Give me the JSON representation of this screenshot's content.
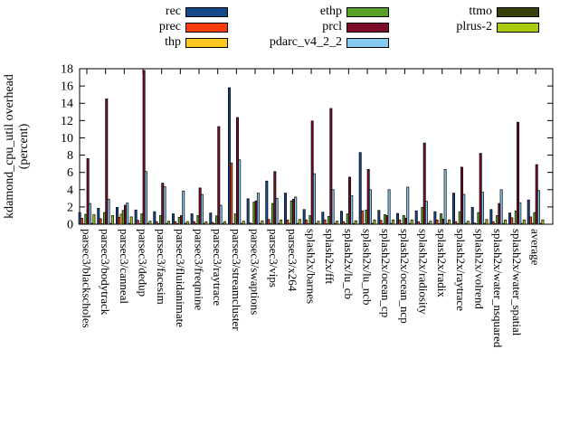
{
  "chart_data": {
    "type": "bar",
    "title": "",
    "ylabel_line1": "kdamond_cpu_util overhead",
    "ylabel_line2": "(percent)",
    "ylim": [
      0,
      18
    ],
    "ytick_step": 2,
    "grid": false,
    "legend_position": "top",
    "legend_columns": [
      [
        "rec",
        "prec",
        "thp"
      ],
      [
        "ethp",
        "prcl",
        "pdarc_v4_2_2"
      ],
      [
        "ttmo",
        "plrus-2"
      ]
    ],
    "categories": [
      "parsec3/blackscholes",
      "parsec3/bodytrack",
      "parsec3/canneal",
      "parsec3/dedup",
      "parsec3/facesim",
      "parsec3/fluidanimate",
      "parsec3/freqmine",
      "parsec3/raytrace",
      "parsec3/streamcluster",
      "parsec3/swaptions",
      "parsec3/vips",
      "parsec3/x264",
      "splash2x/barnes",
      "splash2x/fft",
      "splash2x/lu_cb",
      "splash2x/lu_ncb",
      "splash2x/ocean_cp",
      "splash2x/ocean_ncp",
      "splash2x/radiosity",
      "splash2x/radix",
      "splash2x/raytrace",
      "splash2x/volrend",
      "splash2x/water_nsquared",
      "splash2x/water_spatial",
      "average"
    ],
    "series": [
      {
        "name": "rec",
        "color": "#16498c",
        "values": [
          1.35,
          1.85,
          1.95,
          1.65,
          1.45,
          1.2,
          1.2,
          1.3,
          15.8,
          2.95,
          5.0,
          3.6,
          1.7,
          1.4,
          1.5,
          8.3,
          1.6,
          1.25,
          1.55,
          1.45,
          3.6,
          1.95,
          1.7,
          1.3,
          2.8
        ]
      },
      {
        "name": "prec",
        "color": "#f83c0c",
        "values": [
          0.7,
          0.65,
          0.8,
          0.45,
          0.3,
          0.3,
          0.3,
          0.2,
          7.1,
          0.15,
          0.55,
          0.5,
          0.5,
          0.5,
          0.3,
          1.55,
          0.45,
          0.5,
          0.3,
          0.5,
          0.3,
          0.15,
          0.3,
          0.75,
          0.85
        ]
      },
      {
        "name": "thp",
        "color": "#fcc821",
        "values": [
          0.05,
          0.05,
          1.15,
          0.05,
          0.05,
          0.05,
          0.05,
          0.05,
          0.05,
          0.05,
          0.1,
          0.1,
          0.05,
          0.05,
          0.05,
          0.05,
          0.05,
          0.05,
          0.05,
          0.05,
          0.05,
          0.05,
          0.05,
          0.05,
          0.1
        ]
      },
      {
        "name": "ethp",
        "color": "#58a028",
        "values": [
          1.15,
          1.35,
          1.6,
          1.2,
          1.0,
          0.8,
          1.0,
          0.95,
          1.2,
          2.55,
          2.4,
          2.7,
          1.0,
          0.9,
          1.2,
          1.65,
          1.1,
          1.0,
          1.95,
          1.2,
          1.45,
          1.35,
          1.0,
          1.55,
          1.35
        ]
      },
      {
        "name": "prcl",
        "color": "#7d0c28",
        "values": [
          7.6,
          14.5,
          2.2,
          17.8,
          4.75,
          1.0,
          4.2,
          11.3,
          12.35,
          2.7,
          6.1,
          2.9,
          11.95,
          13.4,
          5.45,
          6.35,
          1.0,
          0.7,
          9.4,
          0.6,
          6.6,
          8.2,
          2.4,
          11.8,
          6.9
        ]
      },
      {
        "name": "pdarc_v4_2_2",
        "color": "#87caf0",
        "values": [
          2.4,
          2.9,
          2.45,
          6.1,
          4.35,
          3.85,
          3.45,
          2.2,
          7.45,
          3.6,
          3.0,
          3.15,
          5.85,
          4.0,
          3.3,
          4.0,
          4.0,
          4.3,
          2.65,
          6.35,
          3.45,
          3.7,
          4.0,
          2.5,
          3.9
        ]
      },
      {
        "name": "ttmo",
        "color": "#3a400a",
        "values": [
          0.1,
          0.1,
          0.1,
          0.1,
          0.1,
          0.1,
          0.1,
          0.1,
          0.1,
          0.1,
          0.1,
          0.1,
          0.1,
          0.1,
          0.1,
          0.1,
          0.1,
          0.1,
          0.1,
          0.1,
          0.1,
          0.1,
          0.1,
          0.1,
          0.1
        ]
      },
      {
        "name": "plrus-2",
        "color": "#a9cc0e",
        "values": [
          1.1,
          1.0,
          0.85,
          0.35,
          0.35,
          0.3,
          0.3,
          0.3,
          0.35,
          0.4,
          0.5,
          0.55,
          0.35,
          0.35,
          0.4,
          0.5,
          0.5,
          0.5,
          0.35,
          0.5,
          0.35,
          0.55,
          0.5,
          0.5,
          0.5
        ]
      }
    ],
    "ytick_labels": [
      "0",
      "2",
      "4",
      "6",
      "8",
      "10",
      "12",
      "14",
      "16",
      "18"
    ]
  }
}
